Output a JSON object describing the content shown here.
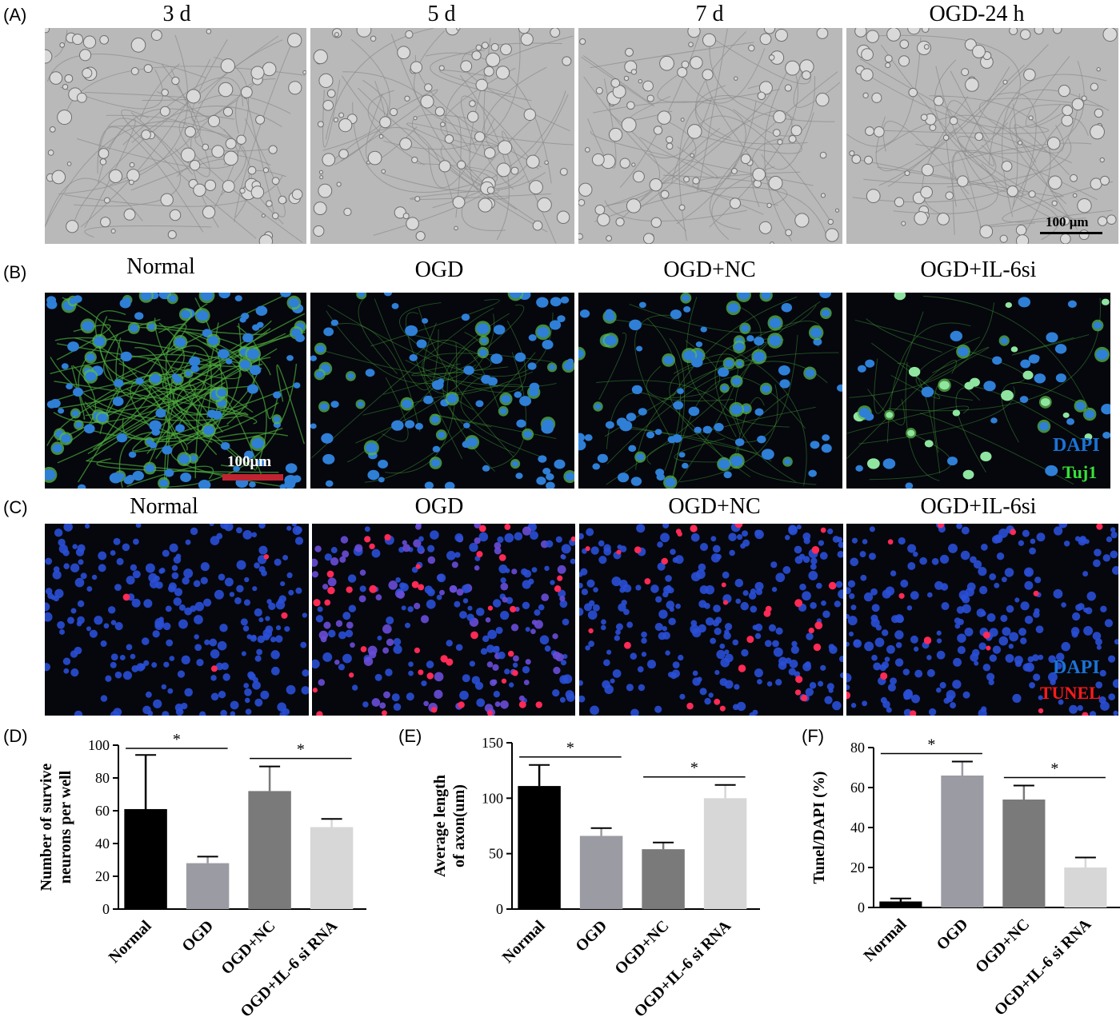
{
  "panels": {
    "A": {
      "letter": "(A)",
      "titles": [
        "3 d",
        "5 d",
        "7 d",
        "OGD-24 h"
      ],
      "scale": "100 μm"
    },
    "B": {
      "letter": "(B)",
      "titles": [
        "Normal",
        "OGD",
        "OGD+NC",
        "OGD+IL-6si"
      ],
      "scale": "100μm",
      "legend": [
        "DAPI",
        "Tuj1"
      ]
    },
    "C": {
      "letter": "(C)",
      "titles": [
        "Normal",
        "OGD",
        "OGD+NC",
        "OGD+IL-6si"
      ],
      "legend": [
        "DAPI",
        "TUNEL"
      ]
    },
    "D": {
      "letter": "(D)"
    },
    "E": {
      "letter": "(E)"
    },
    "F": {
      "letter": "(F)"
    }
  },
  "colors": {
    "normal": "#000000",
    "ogd": "#9b9ba3",
    "nc": "#7a7a7a",
    "si": "#d7d7d7",
    "dapi": "#1a73d6",
    "tuj1": "#39e039",
    "tunel": "#ff1a1a",
    "scalebar_b": "#c02431"
  },
  "chart_data": [
    {
      "type": "bar",
      "categories": [
        "Normal",
        "OGD",
        "OGD+NC",
        "OGD+IL-6 si RNA"
      ],
      "values": [
        61,
        28,
        72,
        50
      ],
      "errors": [
        33,
        4,
        15,
        5
      ],
      "ylabel": "Number of survive neurons per well",
      "ylim": [
        0,
        100
      ],
      "yticks": [
        0,
        20,
        40,
        60,
        80,
        100
      ],
      "sig": [
        {
          "from": 0,
          "to": 1,
          "label": "*"
        },
        {
          "from": 2,
          "to": 3,
          "label": "*"
        }
      ]
    },
    {
      "type": "bar",
      "categories": [
        "Normal",
        "OGD",
        "OGD+NC",
        "OGD+IL-6 si RNA"
      ],
      "values": [
        111,
        66,
        54,
        100
      ],
      "errors": [
        19,
        7,
        6,
        12
      ],
      "ylabel": "Average length of axon(um)",
      "ylim": [
        0,
        150
      ],
      "yticks": [
        0,
        50,
        100,
        150
      ],
      "sig": [
        {
          "from": 0,
          "to": 1,
          "label": "*"
        },
        {
          "from": 2,
          "to": 3,
          "label": "*"
        }
      ]
    },
    {
      "type": "bar",
      "categories": [
        "Normal",
        "OGD",
        "OGD+NC",
        "OGD+IL-6 si RNA"
      ],
      "values": [
        3,
        66,
        54,
        20
      ],
      "errors": [
        1.5,
        7,
        7,
        5
      ],
      "ylabel": "Tunel/DAPI (%)",
      "ylim": [
        0,
        80
      ],
      "yticks": [
        0,
        20,
        40,
        60,
        80
      ],
      "sig": [
        {
          "from": 0,
          "to": 1,
          "label": "*"
        },
        {
          "from": 2,
          "to": 3,
          "label": "*"
        }
      ]
    }
  ]
}
